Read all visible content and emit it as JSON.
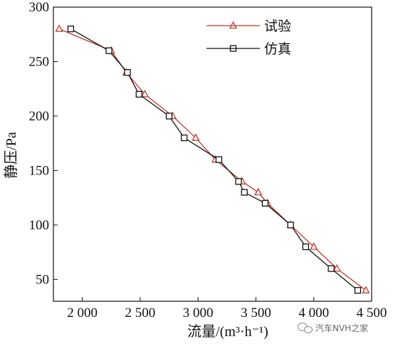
{
  "chart_data": {
    "type": "line",
    "title": "",
    "xlabel": "流量/(m³·h⁻¹)",
    "ylabel": "静压/Pa",
    "xlim": [
      1750,
      4500
    ],
    "ylim": [
      30,
      300
    ],
    "x_ticks": [
      2000,
      2500,
      3000,
      3500,
      4000,
      4500
    ],
    "x_tick_labels": [
      "2 000",
      "2 500",
      "3 000",
      "3 500",
      "4 000",
      "4 500"
    ],
    "y_ticks": [
      50,
      100,
      150,
      200,
      250,
      300
    ],
    "y_tick_labels": [
      "50",
      "100",
      "150",
      "200",
      "250",
      "300"
    ],
    "grid": false,
    "legend_position": "top-right",
    "series": [
      {
        "name": "试验",
        "color": "#c0392b",
        "marker": "triangle",
        "points": [
          [
            1800,
            280
          ],
          [
            2250,
            260
          ],
          [
            2380,
            240
          ],
          [
            2540,
            220
          ],
          [
            2780,
            200
          ],
          [
            2980,
            180
          ],
          [
            3150,
            160
          ],
          [
            3380,
            140
          ],
          [
            3520,
            130
          ],
          [
            3600,
            120
          ],
          [
            3800,
            100
          ],
          [
            4000,
            80
          ],
          [
            4200,
            60
          ],
          [
            4450,
            40
          ]
        ]
      },
      {
        "name": "仿真",
        "color": "#111111",
        "marker": "square",
        "points": [
          [
            1900,
            280
          ],
          [
            2230,
            260
          ],
          [
            2390,
            240
          ],
          [
            2490,
            220
          ],
          [
            2750,
            200
          ],
          [
            2880,
            180
          ],
          [
            3180,
            160
          ],
          [
            3350,
            140
          ],
          [
            3400,
            130
          ],
          [
            3580,
            120
          ],
          [
            3800,
            100
          ],
          [
            3930,
            80
          ],
          [
            4150,
            60
          ],
          [
            4380,
            40
          ]
        ]
      }
    ]
  },
  "watermark": {
    "text": "汽车NVH之家",
    "icon": "wechat-icon"
  }
}
